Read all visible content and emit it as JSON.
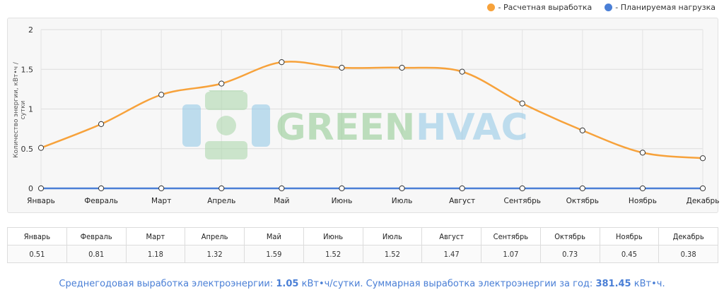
{
  "legend": {
    "items": [
      {
        "label": "- Расчетная выработка",
        "color": "#f7a23b"
      },
      {
        "label": "- Планируемая нагрузка",
        "color": "#4a7fd6"
      }
    ]
  },
  "watermark": {
    "text_green": "GREEN",
    "text_blue": "HVAC"
  },
  "chart_data": {
    "type": "line",
    "categories": [
      "Январь",
      "Февраль",
      "Март",
      "Апрель",
      "Май",
      "Июнь",
      "Июль",
      "Август",
      "Сентябрь",
      "Октябрь",
      "Ноябрь",
      "Декабрь"
    ],
    "series": [
      {
        "name": "- Расчетная выработка",
        "color": "#f7a23b",
        "values": [
          0.51,
          0.81,
          1.18,
          1.32,
          1.59,
          1.52,
          1.52,
          1.47,
          1.07,
          0.73,
          0.45,
          0.38
        ]
      },
      {
        "name": "- Планируемая нагрузка",
        "color": "#4a7fd6",
        "values": [
          0,
          0,
          0,
          0,
          0,
          0,
          0,
          0,
          0,
          0,
          0,
          0
        ]
      }
    ],
    "ylabel": "Количество энергии, кВт•ч / сутки",
    "ylim": [
      0,
      2
    ],
    "yticks": [
      "0",
      "0.5",
      "1",
      "1.5",
      "2"
    ],
    "grid": true,
    "legend_position": "top-right"
  },
  "table": {
    "headers": [
      "Январь",
      "Февраль",
      "Март",
      "Апрель",
      "Май",
      "Июнь",
      "Июль",
      "Август",
      "Сентябрь",
      "Октябрь",
      "Ноябрь",
      "Декабрь"
    ],
    "values": [
      "0.51",
      "0.81",
      "1.18",
      "1.32",
      "1.59",
      "1.52",
      "1.52",
      "1.47",
      "1.07",
      "0.73",
      "0.45",
      "0.38"
    ]
  },
  "summary": {
    "prefix": "Среднегодовая выработка электроэнергии: ",
    "avg_value": "1.05",
    "avg_unit": " кВт•ч/сутки",
    "middle": ". Суммарная выработка электроэнергии за год: ",
    "total_value": "381.45",
    "total_unit": " кВт•ч",
    "suffix": "."
  }
}
